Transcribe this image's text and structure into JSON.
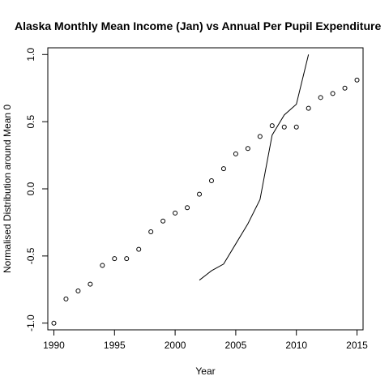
{
  "chart_data": {
    "type": "scatter",
    "title": "Alaska Monthly Mean Income (Jan) vs Annual Per Pupil Expenditure",
    "xlabel": "Year",
    "ylabel": "Normalised Distribution around Mean 0",
    "xlim": [
      1989.5,
      2015.5
    ],
    "ylim": [
      -1.05,
      1.05
    ],
    "xticks": [
      1990,
      1995,
      2000,
      2005,
      2010,
      2015
    ],
    "yticks": [
      -1.0,
      -0.5,
      0.0,
      0.5,
      1.0
    ],
    "ytick_labels": [
      "-1.0",
      "-0.5",
      "0.0",
      "0.5",
      "1.0"
    ],
    "grid": false,
    "series": [
      {
        "kind": "points",
        "x": [
          1990,
          1991,
          1992,
          1993,
          1994,
          1995,
          1996,
          1997,
          1998,
          1999,
          2000,
          2001,
          2002,
          2003,
          2004,
          2005,
          2006,
          2007,
          2008,
          2009,
          2010,
          2011,
          2012,
          2013,
          2014,
          2015
        ],
        "y": [
          -1.0,
          -0.82,
          -0.76,
          -0.71,
          -0.57,
          -0.52,
          -0.52,
          -0.45,
          -0.32,
          -0.24,
          -0.18,
          -0.14,
          -0.04,
          0.06,
          0.15,
          0.26,
          0.3,
          0.39,
          0.47,
          0.46,
          0.46,
          0.6,
          0.68,
          0.71,
          0.75,
          0.81
        ]
      },
      {
        "kind": "line",
        "x": [
          2002,
          2003,
          2004,
          2005,
          2006,
          2007,
          2008,
          2009,
          2010,
          2011
        ],
        "y": [
          -0.68,
          -0.61,
          -0.56,
          -0.41,
          -0.26,
          -0.08,
          0.4,
          0.55,
          0.63,
          1.0
        ]
      }
    ]
  }
}
